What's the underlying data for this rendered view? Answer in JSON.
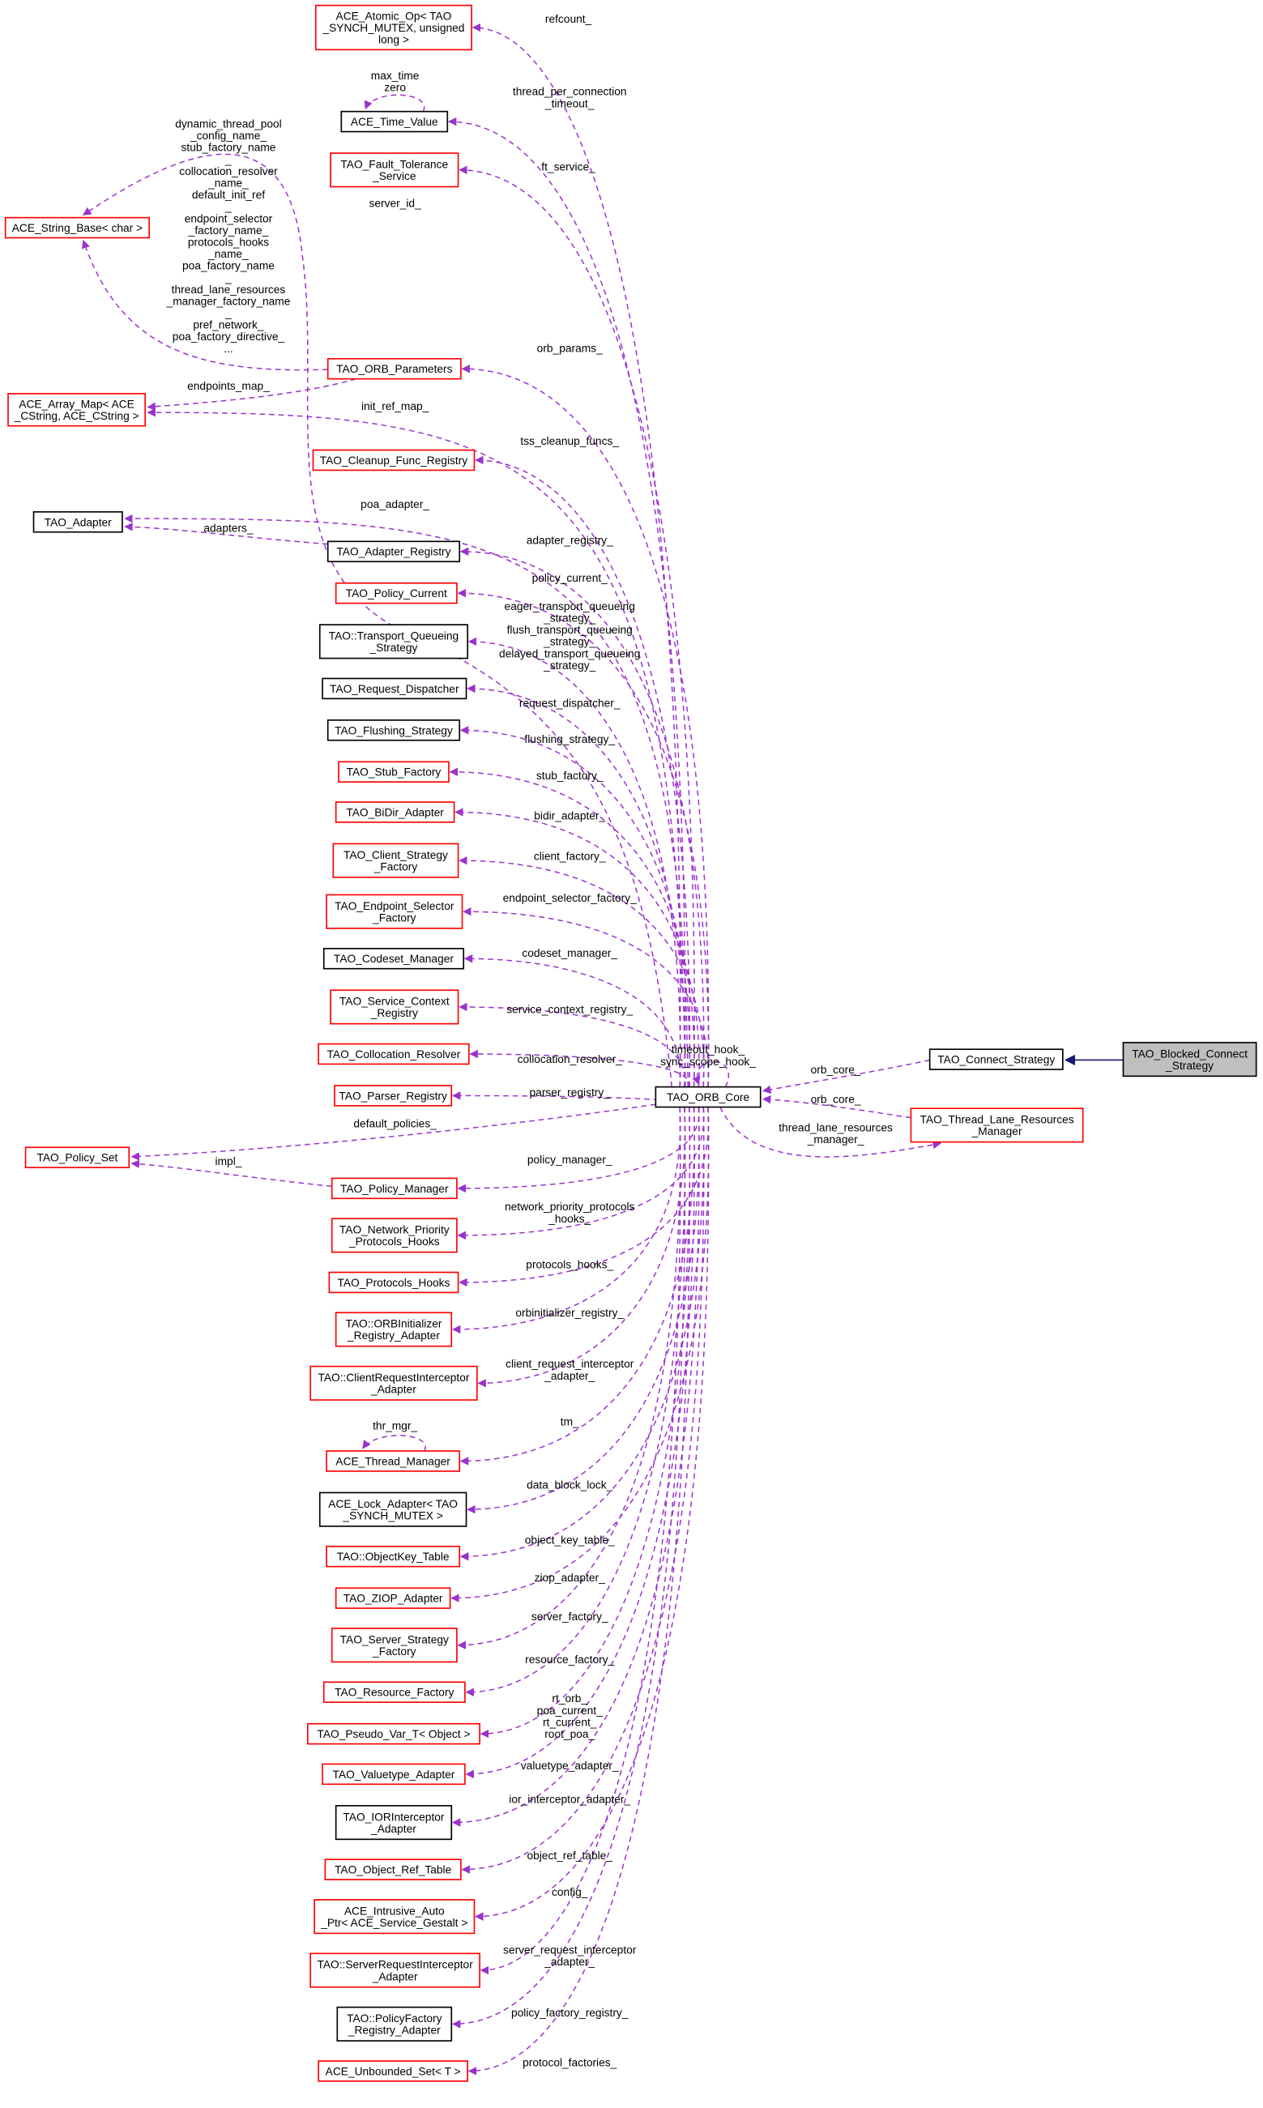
{
  "colors": {
    "usage_edge": "#9a32cd",
    "inheritance_edge": "#191970",
    "node_red_border": "#ff0000",
    "node_black_border": "#000000",
    "focus_fill": "#bfbfbf",
    "node_fill": "#ffffff"
  },
  "nodes": [
    {
      "id": "atomic",
      "lines": [
        "ACE_Atomic_Op< TAO",
        "_SYNCH_MUTEX, unsigned",
        "long >"
      ],
      "border": "red"
    },
    {
      "id": "timevalue",
      "lines": [
        "ACE_Time_Value"
      ],
      "border": "black"
    },
    {
      "id": "ft",
      "lines": [
        "TAO_Fault_Tolerance",
        "_Service"
      ],
      "border": "red"
    },
    {
      "id": "stringbase",
      "lines": [
        "ACE_String_Base< char >"
      ],
      "border": "red"
    },
    {
      "id": "orbparams",
      "lines": [
        "TAO_ORB_Parameters"
      ],
      "border": "red"
    },
    {
      "id": "arraymap",
      "lines": [
        "ACE_Array_Map< ACE",
        "_CString, ACE_CString >"
      ],
      "border": "red"
    },
    {
      "id": "cleanup",
      "lines": [
        "TAO_Cleanup_Func_Registry"
      ],
      "border": "red"
    },
    {
      "id": "adapter",
      "lines": [
        "TAO_Adapter"
      ],
      "border": "black"
    },
    {
      "id": "adapterreg",
      "lines": [
        "TAO_Adapter_Registry"
      ],
      "border": "black"
    },
    {
      "id": "policycurrent",
      "lines": [
        "TAO_Policy_Current"
      ],
      "border": "red"
    },
    {
      "id": "tqs",
      "lines": [
        "TAO::Transport_Queueing",
        "_Strategy"
      ],
      "border": "black"
    },
    {
      "id": "reqdisp",
      "lines": [
        "TAO_Request_Dispatcher"
      ],
      "border": "black"
    },
    {
      "id": "flushing",
      "lines": [
        "TAO_Flushing_Strategy"
      ],
      "border": "black"
    },
    {
      "id": "stub",
      "lines": [
        "TAO_Stub_Factory"
      ],
      "border": "red"
    },
    {
      "id": "bidir",
      "lines": [
        "TAO_BiDir_Adapter"
      ],
      "border": "red"
    },
    {
      "id": "clientsf",
      "lines": [
        "TAO_Client_Strategy",
        "_Factory"
      ],
      "border": "red"
    },
    {
      "id": "endpointsf",
      "lines": [
        "TAO_Endpoint_Selector",
        "_Factory"
      ],
      "border": "red"
    },
    {
      "id": "codeset",
      "lines": [
        "TAO_Codeset_Manager"
      ],
      "border": "black"
    },
    {
      "id": "scr",
      "lines": [
        "TAO_Service_Context",
        "_Registry"
      ],
      "border": "red"
    },
    {
      "id": "colloc",
      "lines": [
        "TAO_Collocation_Resolver"
      ],
      "border": "red"
    },
    {
      "id": "parser",
      "lines": [
        "TAO_Parser_Registry"
      ],
      "border": "red"
    },
    {
      "id": "core",
      "lines": [
        "TAO_ORB_Core"
      ],
      "border": "black"
    },
    {
      "id": "connect",
      "lines": [
        "TAO_Connect_Strategy"
      ],
      "border": "black"
    },
    {
      "id": "blocked",
      "lines": [
        "TAO_Blocked_Connect",
        "_Strategy"
      ],
      "border": "black",
      "focus": true
    },
    {
      "id": "tlrm",
      "lines": [
        "TAO_Thread_Lane_Resources",
        "_Manager"
      ],
      "border": "red"
    },
    {
      "id": "policyset",
      "lines": [
        "TAO_Policy_Set"
      ],
      "border": "red"
    },
    {
      "id": "policymgr",
      "lines": [
        "TAO_Policy_Manager"
      ],
      "border": "red"
    },
    {
      "id": "nph",
      "lines": [
        "TAO_Network_Priority",
        "_Protocols_Hooks"
      ],
      "border": "red"
    },
    {
      "id": "protohooks",
      "lines": [
        "TAO_Protocols_Hooks"
      ],
      "border": "red"
    },
    {
      "id": "orbinit",
      "lines": [
        "TAO::ORBInitializer",
        "_Registry_Adapter"
      ],
      "border": "red"
    },
    {
      "id": "cri",
      "lines": [
        "TAO::ClientRequestInterceptor",
        "_Adapter"
      ],
      "border": "red"
    },
    {
      "id": "threadmgr",
      "lines": [
        "ACE_Thread_Manager"
      ],
      "border": "red"
    },
    {
      "id": "lockadapter",
      "lines": [
        "ACE_Lock_Adapter< TAO",
        "_SYNCH_MUTEX >"
      ],
      "border": "black"
    },
    {
      "id": "okt",
      "lines": [
        "TAO::ObjectKey_Table"
      ],
      "border": "red"
    },
    {
      "id": "ziop",
      "lines": [
        "TAO_ZIOP_Adapter"
      ],
      "border": "red"
    },
    {
      "id": "ssf",
      "lines": [
        "TAO_Server_Strategy",
        "_Factory"
      ],
      "border": "red"
    },
    {
      "id": "resfactory",
      "lines": [
        "TAO_Resource_Factory"
      ],
      "border": "red"
    },
    {
      "id": "pseudovar",
      "lines": [
        "TAO_Pseudo_Var_T< Object >"
      ],
      "border": "red"
    },
    {
      "id": "valuetype",
      "lines": [
        "TAO_Valuetype_Adapter"
      ],
      "border": "red"
    },
    {
      "id": "iorint",
      "lines": [
        "TAO_IORInterceptor",
        "_Adapter"
      ],
      "border": "black"
    },
    {
      "id": "objref",
      "lines": [
        "TAO_Object_Ref_Table"
      ],
      "border": "red"
    },
    {
      "id": "intrusive",
      "lines": [
        "ACE_Intrusive_Auto",
        "_Ptr< ACE_Service_Gestalt >"
      ],
      "border": "red"
    },
    {
      "id": "sri",
      "lines": [
        "TAO::ServerRequestInterceptor",
        "_Adapter"
      ],
      "border": "red"
    },
    {
      "id": "pfr",
      "lines": [
        "TAO::PolicyFactory",
        "_Registry_Adapter"
      ],
      "border": "black"
    },
    {
      "id": "unbounded",
      "lines": [
        "ACE_Unbounded_Set< T >"
      ],
      "border": "red"
    }
  ],
  "edges": [
    {
      "from": "core",
      "to": "atomic",
      "label": [
        "refcount_"
      ]
    },
    {
      "from": "core",
      "to": "timevalue",
      "label": [
        "thread_per_connection",
        "_timeout_"
      ]
    },
    {
      "from": "timevalue",
      "to": "timevalue",
      "label": [
        "max_time",
        "zero"
      ]
    },
    {
      "from": "core",
      "to": "ft",
      "label": [
        "ft_service_"
      ]
    },
    {
      "from": "core",
      "to": "stringbase",
      "label": [
        "server_id_"
      ]
    },
    {
      "from": "orbparams",
      "to": "stringbase",
      "label": [
        "dynamic_thread_pool",
        "_config_name_",
        "stub_factory_name",
        "_",
        "collocation_resolver",
        "_name_",
        "default_init_ref",
        "_",
        "endpoint_selector",
        "_factory_name_",
        "protocols_hooks",
        "_name_",
        "poa_factory_name",
        "_",
        "thread_lane_resources",
        "_manager_factory_name",
        "_",
        "pref_network_",
        "poa_factory_directive_",
        "..."
      ]
    },
    {
      "from": "core",
      "to": "orbparams",
      "label": [
        "orb_params_"
      ]
    },
    {
      "from": "orbparams",
      "to": "arraymap",
      "label": [
        "endpoints_map_"
      ]
    },
    {
      "from": "core",
      "to": "arraymap",
      "label": [
        "init_ref_map_"
      ]
    },
    {
      "from": "core",
      "to": "cleanup",
      "label": [
        "tss_cleanup_funcs_"
      ]
    },
    {
      "from": "core",
      "to": "adapter",
      "label": [
        "poa_adapter_"
      ]
    },
    {
      "from": "adapterreg",
      "to": "adapter",
      "label": [
        "adapters_"
      ]
    },
    {
      "from": "core",
      "to": "adapterreg",
      "label": [
        "adapter_registry_"
      ]
    },
    {
      "from": "core",
      "to": "policycurrent",
      "label": [
        "policy_current_"
      ]
    },
    {
      "from": "core",
      "to": "tqs",
      "label": [
        "eager_transport_queueing",
        "_strategy_",
        "flush_transport_queueing",
        "_strategy_",
        "delayed_transport_queueing",
        "_strategy_"
      ]
    },
    {
      "from": "core",
      "to": "reqdisp",
      "label": [
        "request_dispatcher_"
      ]
    },
    {
      "from": "core",
      "to": "flushing",
      "label": [
        "flushing_strategy_"
      ]
    },
    {
      "from": "core",
      "to": "stub",
      "label": [
        "stub_factory_"
      ]
    },
    {
      "from": "core",
      "to": "bidir",
      "label": [
        "bidir_adapter_"
      ]
    },
    {
      "from": "core",
      "to": "clientsf",
      "label": [
        "client_factory_"
      ]
    },
    {
      "from": "core",
      "to": "endpointsf",
      "label": [
        "endpoint_selector_factory_"
      ]
    },
    {
      "from": "core",
      "to": "codeset",
      "label": [
        "codeset_manager_"
      ]
    },
    {
      "from": "core",
      "to": "scr",
      "label": [
        "service_context_registry_"
      ]
    },
    {
      "from": "core",
      "to": "colloc",
      "label": [
        "collocation_resolver_"
      ]
    },
    {
      "from": "core",
      "to": "parser",
      "label": [
        "parser_registry_"
      ]
    },
    {
      "from": "core",
      "to": "core",
      "label": [
        "timeout_hook_",
        "sync_scope_hook_"
      ]
    },
    {
      "from": "connect",
      "to": "core",
      "label": [
        "orb_core_"
      ]
    },
    {
      "from": "tlrm",
      "to": "core",
      "label": [
        "orb_core_"
      ]
    },
    {
      "from": "core",
      "to": "tlrm",
      "label": [
        "thread_lane_resources",
        "_manager_"
      ]
    },
    {
      "from": "blocked",
      "to": "connect",
      "label": [],
      "style": "inheritance"
    },
    {
      "from": "core",
      "to": "policyset",
      "label": [
        "default_policies_"
      ]
    },
    {
      "from": "policymgr",
      "to": "policyset",
      "label": [
        "impl_"
      ]
    },
    {
      "from": "core",
      "to": "policymgr",
      "label": [
        "policy_manager_"
      ]
    },
    {
      "from": "core",
      "to": "nph",
      "label": [
        "network_priority_protocols",
        "_hooks_"
      ]
    },
    {
      "from": "core",
      "to": "protohooks",
      "label": [
        "protocols_hooks_"
      ]
    },
    {
      "from": "core",
      "to": "orbinit",
      "label": [
        "orbinitializer_registry_"
      ]
    },
    {
      "from": "core",
      "to": "cri",
      "label": [
        "client_request_interceptor",
        "_adapter_"
      ]
    },
    {
      "from": "threadmgr",
      "to": "threadmgr",
      "label": [
        "thr_mgr_"
      ]
    },
    {
      "from": "core",
      "to": "threadmgr",
      "label": [
        "tm_"
      ]
    },
    {
      "from": "core",
      "to": "lockadapter",
      "label": [
        "data_block_lock_"
      ]
    },
    {
      "from": "core",
      "to": "okt",
      "label": [
        "object_key_table_"
      ]
    },
    {
      "from": "core",
      "to": "ziop",
      "label": [
        "ziop_adapter_"
      ]
    },
    {
      "from": "core",
      "to": "ssf",
      "label": [
        "server_factory_"
      ]
    },
    {
      "from": "core",
      "to": "resfactory",
      "label": [
        "resource_factory_"
      ]
    },
    {
      "from": "core",
      "to": "pseudovar",
      "label": [
        "rt_orb_",
        "poa_current_",
        "rt_current_",
        "root_poa_"
      ]
    },
    {
      "from": "core",
      "to": "valuetype",
      "label": [
        "valuetype_adapter_"
      ]
    },
    {
      "from": "core",
      "to": "iorint",
      "label": [
        "ior_interceptor_adapter_"
      ]
    },
    {
      "from": "core",
      "to": "objref",
      "label": [
        "object_ref_table_"
      ]
    },
    {
      "from": "core",
      "to": "intrusive",
      "label": [
        "config_"
      ]
    },
    {
      "from": "core",
      "to": "sri",
      "label": [
        "server_request_interceptor",
        "_adapter_"
      ]
    },
    {
      "from": "core",
      "to": "pfr",
      "label": [
        "policy_factory_registry_"
      ]
    },
    {
      "from": "core",
      "to": "unbounded",
      "label": [
        "protocol_factories_"
      ]
    }
  ]
}
